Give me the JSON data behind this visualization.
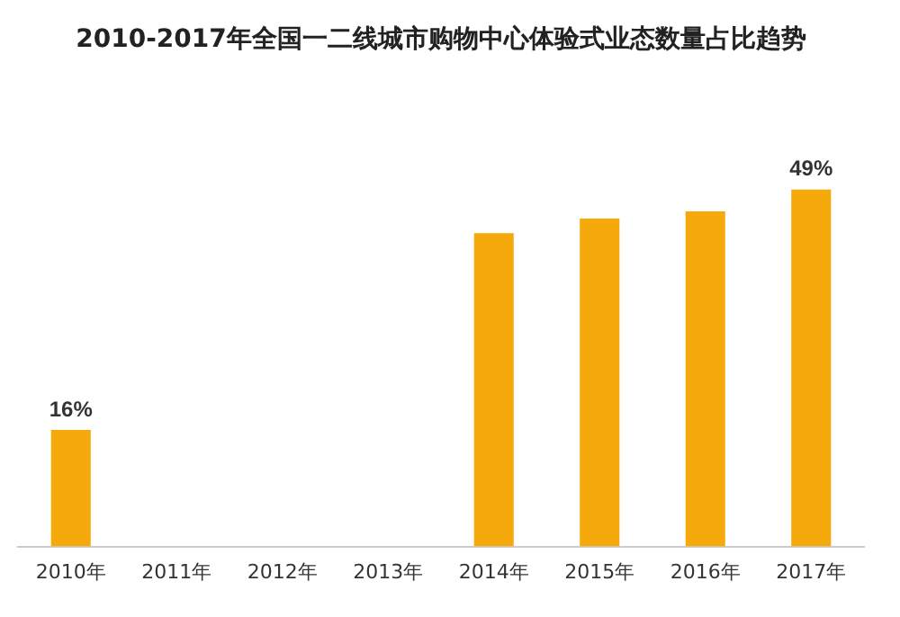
{
  "chart_data": {
    "type": "bar",
    "title": "2010-2017年全国一二线城市购物中心体验式业态数量占比趋势",
    "categories": [
      "2010年",
      "2011年",
      "2012年",
      "2013年",
      "2014年",
      "2015年",
      "2016年",
      "2017年"
    ],
    "series": [
      {
        "color": "#f5a90a",
        "values": [
          16,
          null,
          null,
          null,
          43,
          45,
          46,
          49
        ],
        "value_labels": [
          "16%",
          null,
          null,
          null,
          null,
          null,
          null,
          "49%"
        ]
      }
    ],
    "grid": false,
    "legend": false
  }
}
